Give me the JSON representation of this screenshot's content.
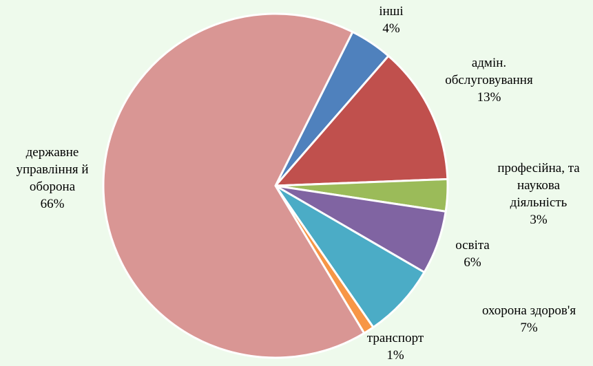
{
  "chart_data": {
    "type": "pie",
    "categories": [
      "інші",
      "адмін.\nобслуговування",
      "професійна, та\nнаукова\nдіяльність",
      "освіта",
      "охорона здоров'я",
      "транспорт",
      "державне\nуправління й\nоборона"
    ],
    "values": [
      4,
      13,
      3,
      6,
      7,
      1,
      66
    ],
    "value_labels": [
      "4%",
      "13%",
      "3%",
      "6%",
      "7%",
      "1%",
      "66%"
    ],
    "colors": [
      "#4f81bd",
      "#c0504d",
      "#9bbb59",
      "#8064a2",
      "#4bacc6",
      "#f79646",
      "#d99694"
    ]
  }
}
